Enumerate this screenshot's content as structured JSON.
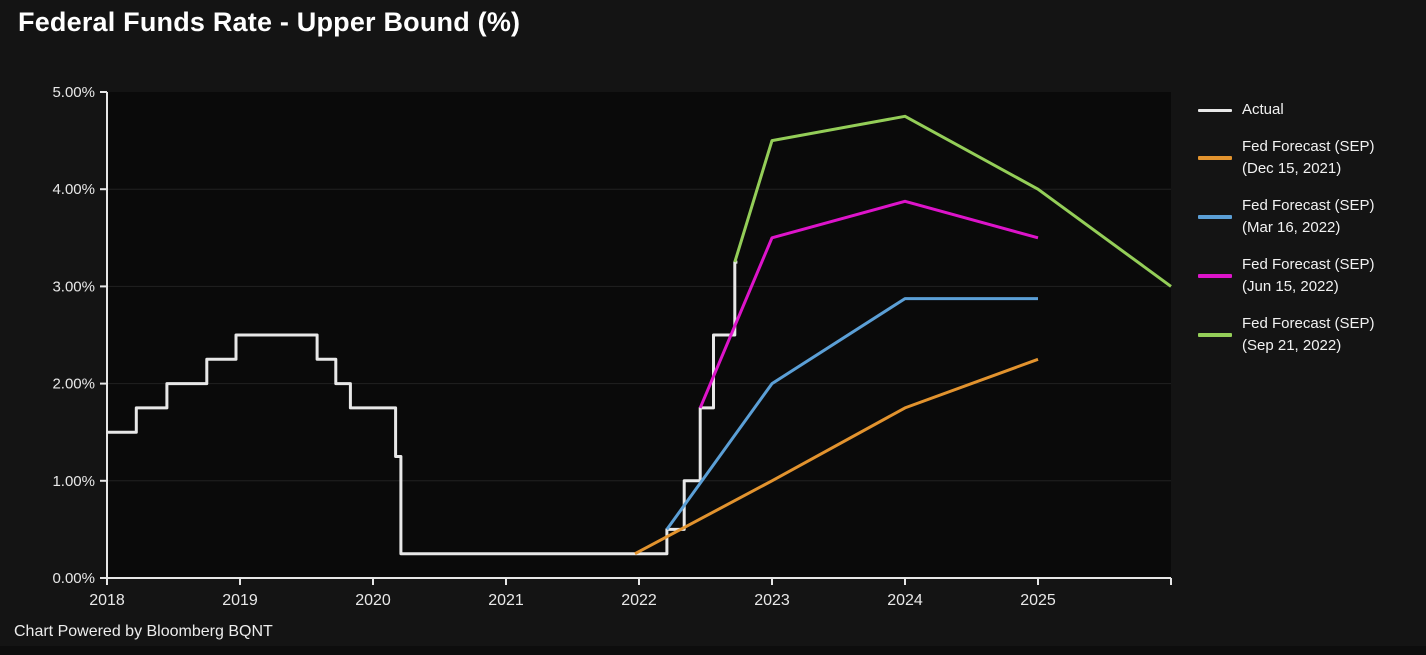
{
  "title": "Federal Funds Rate - Upper Bound (%)",
  "footer": "Chart Powered by Bloomberg BQNT",
  "colors": {
    "page_bg": "#141414",
    "plot_bg": "#0a0a0a",
    "grid": "#212121",
    "axis": "#e6e6e6",
    "tick_text": "#e8e8e8",
    "title_text": "#ffffff",
    "legend_text": "#f2f2f2"
  },
  "legend": {
    "items": [
      {
        "line1": "Actual",
        "line2": ""
      },
      {
        "line1": "Fed Forecast (SEP)",
        "line2": "(Dec 15, 2021)"
      },
      {
        "line1": "Fed Forecast (SEP)",
        "line2": "(Mar 16, 2022)"
      },
      {
        "line1": "Fed Forecast (SEP)",
        "line2": "(Jun 15, 2022)"
      },
      {
        "line1": "Fed Forecast (SEP)",
        "line2": "(Sep 21, 2022)"
      }
    ]
  },
  "chart_data": {
    "type": "line",
    "title": "Federal Funds Rate - Upper Bound (%)",
    "xlabel": "",
    "ylabel": "",
    "x_range": [
      2018,
      2026
    ],
    "y_range": [
      0,
      5
    ],
    "grid_on": true,
    "grid_y": [
      1,
      2,
      3,
      4
    ],
    "legend_position": "right",
    "x_ticks": [
      {
        "label": "2018",
        "value": 2018
      },
      {
        "label": "2019",
        "value": 2019
      },
      {
        "label": "2020",
        "value": 2020
      },
      {
        "label": "2021",
        "value": 2021
      },
      {
        "label": "2022",
        "value": 2022
      },
      {
        "label": "2023",
        "value": 2023
      },
      {
        "label": "2024",
        "value": 2024
      },
      {
        "label": "2025",
        "value": 2025
      },
      {
        "label": "",
        "value": 2026
      }
    ],
    "y_ticks": [
      {
        "label": "0.00%",
        "value": 0
      },
      {
        "label": "1.00%",
        "value": 1
      },
      {
        "label": "2.00%",
        "value": 2
      },
      {
        "label": "3.00%",
        "value": 3
      },
      {
        "label": "4.00%",
        "value": 4
      },
      {
        "label": "5.00%",
        "value": 5
      }
    ],
    "series": [
      {
        "name": "Actual",
        "color": "#e8e8e8",
        "style": "step",
        "width": 3,
        "points": [
          [
            2018.0,
            1.5
          ],
          [
            2018.22,
            1.75
          ],
          [
            2018.45,
            2.0
          ],
          [
            2018.75,
            2.25
          ],
          [
            2018.97,
            2.5
          ],
          [
            2019.58,
            2.25
          ],
          [
            2019.72,
            2.0
          ],
          [
            2019.83,
            1.75
          ],
          [
            2020.17,
            1.25
          ],
          [
            2020.21,
            0.25
          ],
          [
            2022.21,
            0.5
          ],
          [
            2022.34,
            1.0
          ],
          [
            2022.46,
            1.75
          ],
          [
            2022.56,
            2.5
          ],
          [
            2022.72,
            3.25
          ],
          [
            2022.74,
            3.25
          ]
        ]
      },
      {
        "name": "Fed Forecast (SEP) (Dec 15, 2021)",
        "color": "#e2932e",
        "style": "line",
        "width": 3,
        "points": [
          [
            2021.97,
            0.25
          ],
          [
            2023.0,
            1.0
          ],
          [
            2024.0,
            1.75
          ],
          [
            2025.0,
            2.25
          ]
        ]
      },
      {
        "name": "Fed Forecast (SEP) (Mar 16, 2022)",
        "color": "#5b9fd6",
        "style": "line",
        "width": 3,
        "points": [
          [
            2022.21,
            0.5
          ],
          [
            2023.0,
            2.0
          ],
          [
            2024.0,
            2.875
          ],
          [
            2025.0,
            2.875
          ]
        ]
      },
      {
        "name": "Fed Forecast (SEP) (Jun 15, 2022)",
        "color": "#dd14ca",
        "style": "line",
        "width": 3,
        "points": [
          [
            2022.46,
            1.75
          ],
          [
            2023.0,
            3.5
          ],
          [
            2024.0,
            3.875
          ],
          [
            2025.0,
            3.5
          ]
        ]
      },
      {
        "name": "Fed Forecast (SEP) (Sep 21, 2022)",
        "color": "#94ce58",
        "style": "line",
        "width": 3,
        "points": [
          [
            2022.72,
            3.25
          ],
          [
            2023.0,
            4.5
          ],
          [
            2024.0,
            4.75
          ],
          [
            2025.0,
            4.0
          ],
          [
            2026.0,
            3.0
          ]
        ]
      }
    ]
  }
}
